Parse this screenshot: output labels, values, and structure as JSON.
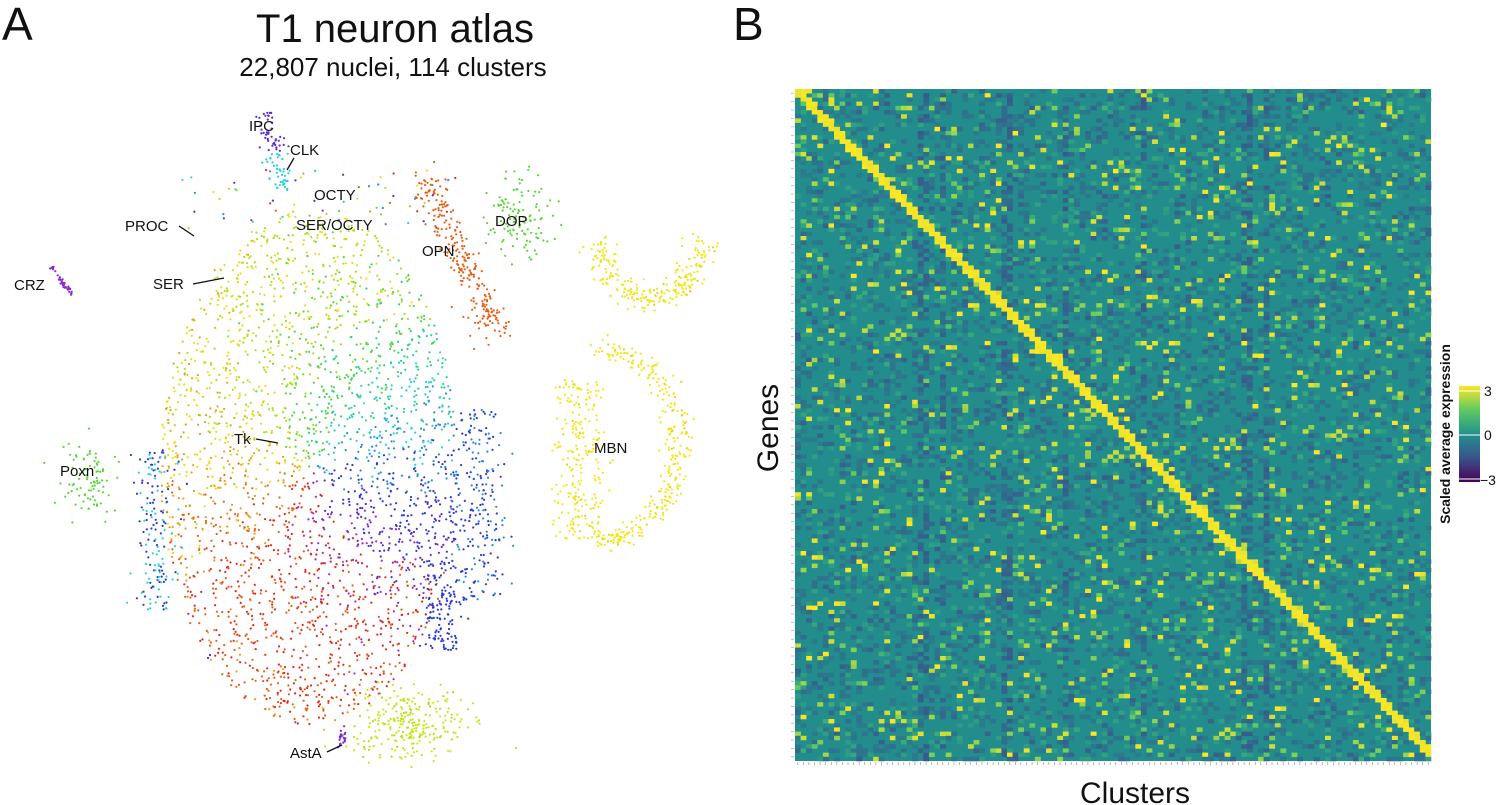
{
  "panels": {
    "a_letter": "A",
    "b_letter": "B"
  },
  "chart_data": [
    {
      "type": "scatter",
      "title": "T1 neuron atlas",
      "subtitle": "22,807 nuclei, 114 clusters",
      "n_points": 22807,
      "n_clusters": 114,
      "xlabel": "",
      "ylabel": "",
      "cluster_labels": [
        {
          "name": "IPC",
          "color": "#5a2ad6"
        },
        {
          "name": "CLK",
          "color": "#2ad0e0"
        },
        {
          "name": "OCTY",
          "color": "#9b2ad6"
        },
        {
          "name": "SER/OCTY",
          "color": "#4fd63a"
        },
        {
          "name": "PROC",
          "color": "#2a3ad6"
        },
        {
          "name": "DOP",
          "color": "#3ed62a"
        },
        {
          "name": "OPN",
          "color": "#e0601a"
        },
        {
          "name": "CRZ",
          "color": "#8a2ad6"
        },
        {
          "name": "SER",
          "color": "#a0d62a"
        },
        {
          "name": "MBN",
          "color": "#f2e61a"
        },
        {
          "name": "Tk",
          "color": "#3a2ad6"
        },
        {
          "name": "Poxn",
          "color": "#3ad62a"
        },
        {
          "name": "AstA",
          "color": "#7a2ad6"
        }
      ],
      "palette": [
        "#e6261a",
        "#e6601a",
        "#e6a01a",
        "#f0d81a",
        "#a8e01a",
        "#5ad63a",
        "#2ad08a",
        "#2ad0e0",
        "#2a8ae0",
        "#2a3ad6",
        "#5a2ad6",
        "#a02ad6"
      ]
    },
    {
      "type": "heatmap",
      "title": "",
      "xlabel": "Clusters",
      "ylabel": "Genes",
      "n_columns": 114,
      "colorbar": {
        "title": "Scaled average expression",
        "min": -3,
        "max": 3,
        "ticks": [
          "3",
          "0",
          "−3"
        ],
        "colormap": "viridis",
        "stops": [
          "#fde725",
          "#5ec962",
          "#21918c",
          "#3b528b",
          "#440154"
        ]
      },
      "pattern": "diagonal of high expression (one block of marker genes per cluster)"
    }
  ]
}
